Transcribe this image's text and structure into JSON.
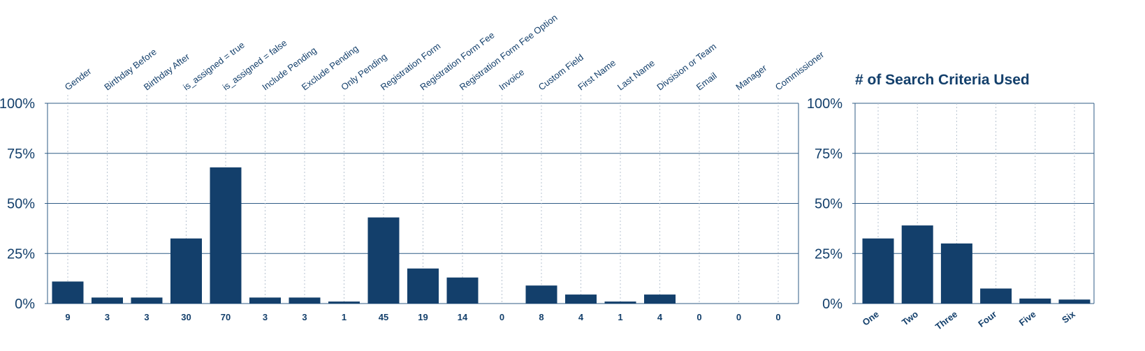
{
  "colors": {
    "bar": "#133f6b",
    "axis": "#2f5b86",
    "text": "#133f6b"
  },
  "chart_data": [
    {
      "type": "bar",
      "title": "",
      "xlabel": "",
      "ylabel": "",
      "ylim": [
        0,
        100
      ],
      "ytick_labels": [
        "0%",
        "25%",
        "50%",
        "75%",
        "100%"
      ],
      "grid": true,
      "categories": [
        "Gender",
        "Birthday Before",
        "Birthday After",
        "is_assigned = true",
        "is_assigned = false",
        "Include Pending",
        "Exclude Pending",
        "Only Pending",
        "Registration Form",
        "Registration Form Fee",
        "Registration Form Fee Option",
        "Invoice",
        "Custom Field",
        "First Name",
        "Last Name",
        "Divsision or Team",
        "Email",
        "Manager",
        "Commissioner"
      ],
      "counts": [
        "9",
        "3",
        "3",
        "30",
        "70",
        "3",
        "3",
        "1",
        "45",
        "19",
        "14",
        "0",
        "8",
        "4",
        "1",
        "4",
        "0",
        "0",
        "0"
      ],
      "values": [
        11,
        3,
        3,
        32.5,
        68,
        3,
        3,
        1,
        43,
        17.5,
        13,
        0,
        9,
        4.5,
        1,
        4.5,
        0,
        0,
        0
      ]
    },
    {
      "type": "bar",
      "title": "# of Search Criteria Used",
      "xlabel": "",
      "ylabel": "",
      "ylim": [
        0,
        100
      ],
      "ytick_labels": [
        "0%",
        "25%",
        "50%",
        "75%",
        "100%"
      ],
      "grid": true,
      "categories": [
        "One",
        "Two",
        "Three",
        "Four",
        "Five",
        "Six"
      ],
      "values": [
        32.5,
        39,
        30,
        7.5,
        2.5,
        2
      ]
    }
  ]
}
